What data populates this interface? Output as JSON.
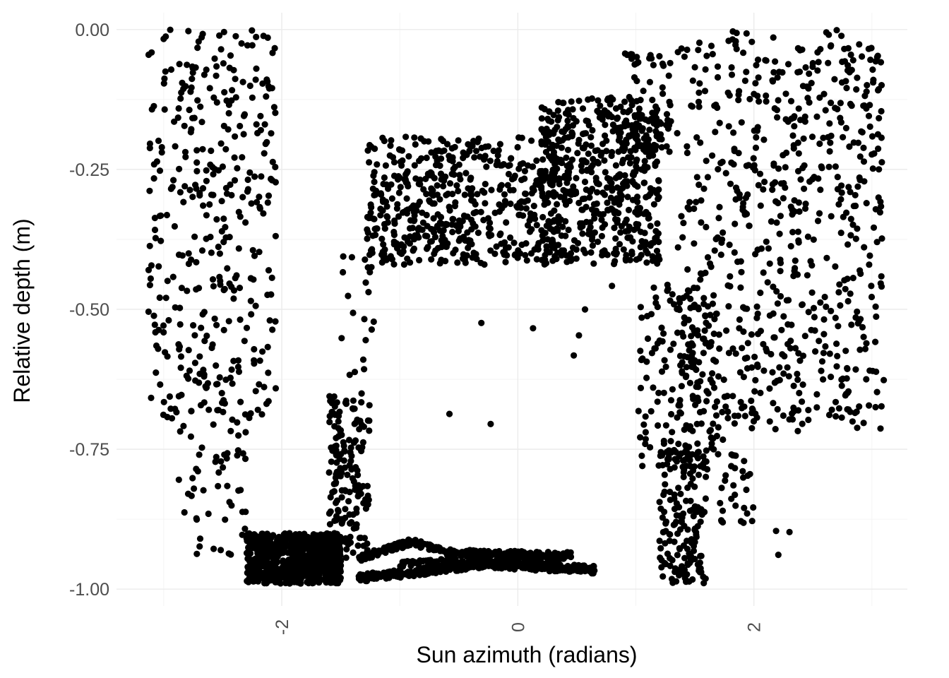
{
  "chart_data": {
    "type": "scatter",
    "title": "",
    "xlabel": "Sun azimuth (radians)",
    "ylabel": "Relative depth (m)",
    "xlim": [
      -3.4,
      3.3
    ],
    "ylim": [
      -1.03,
      0.03
    ],
    "x_ticks": [
      {
        "value": -2,
        "label": "-2"
      },
      {
        "value": 0,
        "label": "0"
      },
      {
        "value": 2,
        "label": "2"
      }
    ],
    "x_minor_ticks": [
      -3,
      -1,
      1,
      3
    ],
    "y_ticks": [
      {
        "value": 0.0,
        "label": "0.00"
      },
      {
        "value": -0.25,
        "label": "-0.25"
      },
      {
        "value": -0.5,
        "label": "-0.50"
      },
      {
        "value": -0.75,
        "label": "-0.75"
      },
      {
        "value": -1.0,
        "label": "-1.00"
      }
    ],
    "y_minor_ticks": [
      -0.125,
      -0.375,
      -0.625,
      -0.875
    ],
    "grid": true,
    "theme": "minimal",
    "point_color": "#000000",
    "clusters": [
      {
        "x": [
          -3.13,
          -2.05
        ],
        "y": [
          0.0,
          -0.7
        ],
        "n": 350,
        "dist": "uniform"
      },
      {
        "x": [
          -2.9,
          -2.3
        ],
        "y": [
          -0.6,
          -0.95
        ],
        "n": 70,
        "dist": "uniform"
      },
      {
        "x": [
          -2.3,
          -1.5
        ],
        "y": [
          -0.9,
          -0.99
        ],
        "n": 700,
        "dist": "uniform"
      },
      {
        "x": [
          -1.6,
          -1.25
        ],
        "y": [
          -0.95,
          -0.65
        ],
        "n": 170,
        "dist": "uniform"
      },
      {
        "x": [
          -1.5,
          -1.2
        ],
        "y": [
          -0.62,
          -0.38
        ],
        "n": 20,
        "dist": "uniform"
      },
      {
        "x_from": -1.35,
        "x_to": 0.45,
        "y_curve": [
          [
            -1.35,
            -0.945
          ],
          [
            -0.9,
            -0.915
          ],
          [
            -0.6,
            -0.935
          ],
          [
            0.45,
            -0.94
          ]
        ],
        "n": 260,
        "jitter": 0.006
      },
      {
        "x_from": -1.35,
        "x_to": 0.65,
        "y_curve": [
          [
            -1.35,
            -0.98
          ],
          [
            -0.9,
            -0.97
          ],
          [
            -0.3,
            -0.955
          ],
          [
            0.65,
            -0.965
          ]
        ],
        "n": 300,
        "jitter": 0.007
      },
      {
        "x_from": -1.0,
        "x_to": 0.4,
        "y_curve": [
          [
            -1.0,
            -0.955
          ],
          [
            -0.3,
            -0.948
          ],
          [
            0.4,
            -0.95
          ]
        ],
        "n": 120,
        "jitter": 0.005
      },
      {
        "x": [
          -1.28,
          0.35
        ],
        "y": [
          -0.19,
          -0.42
        ],
        "n": 520,
        "dist": "uniform"
      },
      {
        "x": [
          0.2,
          1.2
        ],
        "y": [
          -0.12,
          -0.42
        ],
        "n": 520,
        "dist": "uniform"
      },
      {
        "x": [
          0.9,
          1.3
        ],
        "y": [
          -0.04,
          -0.22
        ],
        "n": 70,
        "dist": "uniform"
      },
      {
        "x": [
          1.35,
          3.1
        ],
        "y": [
          0.0,
          -0.72
        ],
        "n": 650,
        "dist": "uniform"
      },
      {
        "x": [
          1.0,
          1.7
        ],
        "y": [
          -0.45,
          -0.8
        ],
        "n": 150,
        "dist": "uniform"
      },
      {
        "x": [
          1.2,
          1.6
        ],
        "y": [
          -0.75,
          -0.99
        ],
        "n": 170,
        "dist": "uniform"
      },
      {
        "x": [
          1.6,
          2.0
        ],
        "y": [
          -0.65,
          -0.9
        ],
        "n": 50,
        "dist": "uniform"
      },
      {
        "x": [
          -0.9,
          0.9
        ],
        "y": [
          -0.45,
          -0.75
        ],
        "n": 8,
        "dist": "uniform"
      },
      {
        "x": [
          2.0,
          2.4
        ],
        "y": [
          -0.88,
          -0.95
        ],
        "n": 3,
        "dist": "uniform"
      }
    ]
  }
}
